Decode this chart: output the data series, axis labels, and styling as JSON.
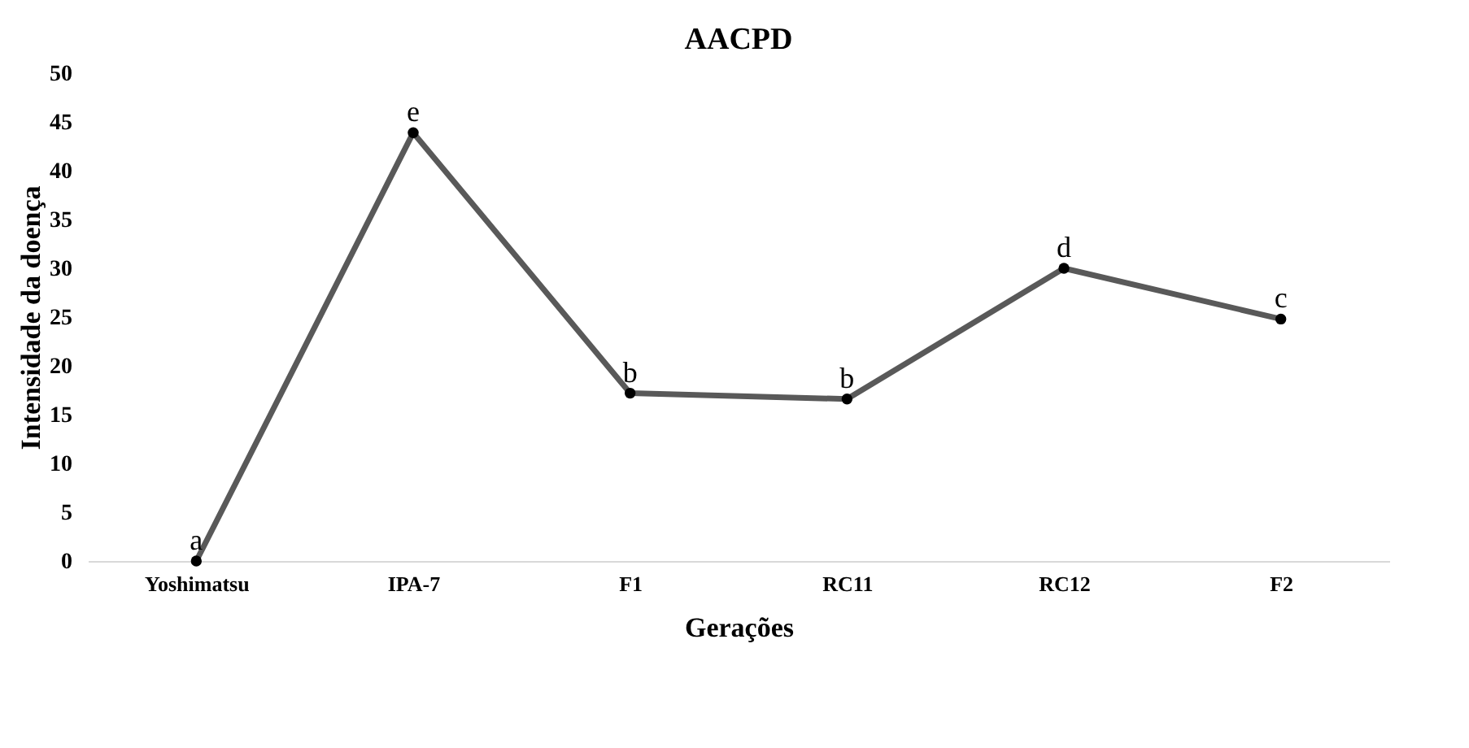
{
  "chart_data": {
    "type": "line",
    "title": "AACPD",
    "xlabel": "Gerações",
    "ylabel": "Intensidade da doença",
    "categories": [
      "Yoshimatsu",
      "IPA-7",
      "F1",
      "RC11",
      "RC12",
      "F2"
    ],
    "series": [
      {
        "color": "#595959",
        "values": [
          0,
          43.9,
          17.2,
          16.6,
          30.0,
          24.8
        ]
      }
    ],
    "ylim": [
      0,
      50
    ],
    "yticks": [
      0,
      5,
      10,
      15,
      20,
      25,
      30,
      35,
      40,
      45,
      50
    ],
    "grid": false,
    "marker": "circle",
    "line_style": "solid",
    "annotations": [
      {
        "text": "a",
        "x": "Yoshimatsu",
        "y": 0
      },
      {
        "text": "e",
        "x": "IPA-7",
        "y": 43.9
      },
      {
        "text": "b",
        "x": "F1",
        "y": 17.2
      },
      {
        "text": "b",
        "x": "RC11",
        "y": 16.6
      },
      {
        "text": "d",
        "x": "RC12",
        "y": 30.0
      },
      {
        "text": "c",
        "x": "F2",
        "y": 24.8
      }
    ]
  }
}
